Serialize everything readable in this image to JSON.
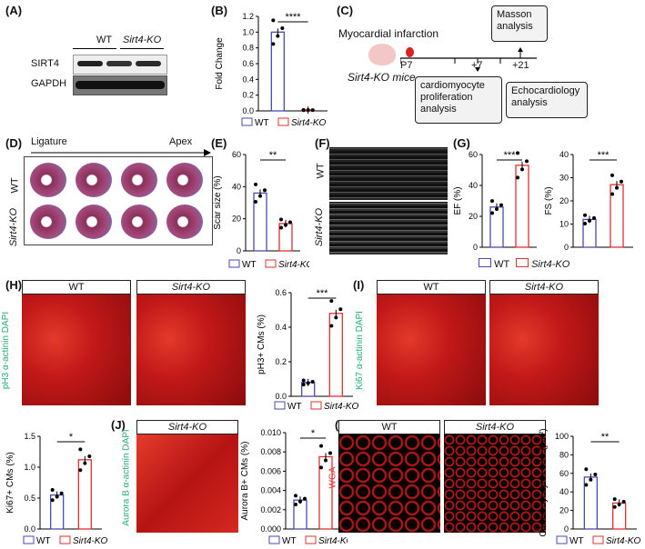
{
  "panels": {
    "A": "(A)",
    "B": "(B)",
    "C": "(C)",
    "D": "(D)",
    "E": "(E)",
    "F": "(F)",
    "G": "(G)",
    "H": "(H)",
    "I": "(I)",
    "J": "(J)",
    "K": "(K)"
  },
  "western": {
    "wt": "WT",
    "ko": "Sirt4-KO",
    "row1": "SIRT4",
    "row2": "GAPDH"
  },
  "legend": {
    "wt": "WT",
    "ko": "Sirt4-KO"
  },
  "timeline": {
    "title": "Myocardial infarction",
    "mice": "Sirt4-KO mice",
    "t0": "P7",
    "t1": "+7",
    "t2": "+21",
    "box1": "cardiomyocyte proliferation analysis",
    "box2": "Echocardiology analysis",
    "box3": "Masson analysis"
  },
  "masson": {
    "ligature": "Ligature",
    "apex": "Apex",
    "wt": "WT",
    "ko": "Sirt4-KO"
  },
  "echo": {
    "wt": "WT",
    "ko": "Sirt4-KO"
  },
  "stain_H": {
    "wt": "WT",
    "ko": "Sirt4-KO",
    "side": "pH3 α-actinin DAPI"
  },
  "stain_I": {
    "wt": "WT",
    "ko": "Sirt4-KO",
    "side": "Ki67 α-actinin DAPI"
  },
  "stain_J": {
    "ko": "Sirt4-KO",
    "side": "Aurora B α-actinin DAPI"
  },
  "stain_K": {
    "wt": "WT",
    "ko": "Sirt4-KO",
    "side": "WGA"
  },
  "chart_data": [
    {
      "id": "B",
      "type": "bar",
      "ylabel": "Fold Change",
      "yticks": [
        "0.0",
        "0.2",
        "0.4",
        "0.6",
        "0.8",
        "1.0",
        "1.2"
      ],
      "ylim": [
        0,
        1.2
      ],
      "values": [
        1.0,
        0.01
      ],
      "sig": "****"
    },
    {
      "id": "E",
      "type": "bar",
      "ylabel": "Scar size (%)",
      "yticks": [
        "0",
        "20",
        "40",
        "60"
      ],
      "ylim": [
        0,
        60
      ],
      "values": [
        36,
        17
      ],
      "sig": "**"
    },
    {
      "id": "G1",
      "type": "bar",
      "ylabel": "EF (%)",
      "yticks": [
        "0",
        "20",
        "40",
        "60"
      ],
      "ylim": [
        0,
        60
      ],
      "values": [
        26,
        53
      ],
      "sig": "***"
    },
    {
      "id": "G2",
      "type": "bar",
      "ylabel": "FS (%)",
      "yticks": [
        "0",
        "10",
        "20",
        "30",
        "40"
      ],
      "ylim": [
        0,
        40
      ],
      "values": [
        12,
        27
      ],
      "sig": "***"
    },
    {
      "id": "H",
      "type": "bar",
      "ylabel": "pH3+ CMs (%)",
      "yticks": [
        "0.0",
        "0.2",
        "0.4",
        "0.6"
      ],
      "ylim": [
        0,
        0.6
      ],
      "values": [
        0.08,
        0.48
      ],
      "sig": "***"
    },
    {
      "id": "I",
      "type": "bar",
      "ylabel": "Ki67+ CMs (%)",
      "yticks": [
        "0.0",
        "0.5",
        "1.0",
        "1.5"
      ],
      "ylim": [
        0,
        1.5
      ],
      "values": [
        0.55,
        1.12
      ],
      "sig": "*"
    },
    {
      "id": "J",
      "type": "bar",
      "ylabel": "Aurora B+ CMs (%)",
      "yticks": [
        "0.000",
        "0.002",
        "0.004",
        "0.006",
        "0.008",
        "0.010"
      ],
      "ylim": [
        0,
        0.01
      ],
      "values": [
        0.003,
        0.0075
      ],
      "sig": "*"
    },
    {
      "id": "K",
      "type": "bar",
      "ylabel": "Cardiomyocytes size (µm²)",
      "yticks": [
        "0",
        "20",
        "40",
        "60",
        "80",
        "100"
      ],
      "ylim": [
        0,
        100
      ],
      "values": [
        56,
        28
      ],
      "sig": "**"
    }
  ],
  "colors": {
    "wt": "#4a4ab0",
    "ko": "#e03030"
  }
}
